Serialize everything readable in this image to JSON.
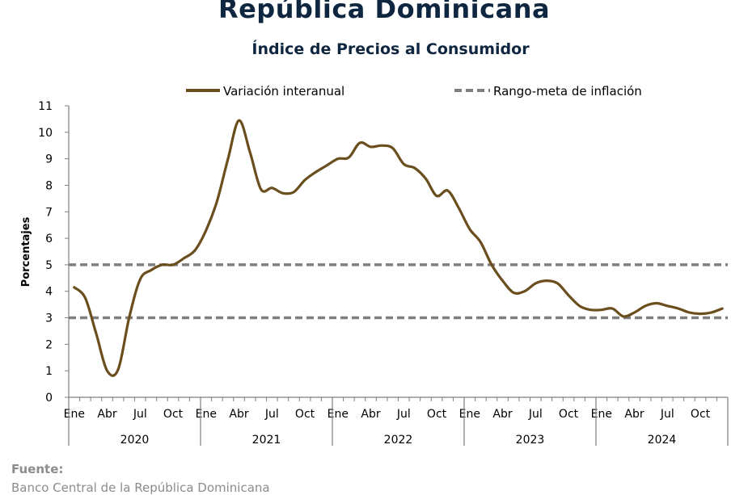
{
  "chart_data": {
    "type": "line",
    "title": "República Dominicana",
    "subtitle": "Índice de Precios al Consumidor",
    "ylabel": "Porcentajes",
    "xlabel": "",
    "ylim": [
      0,
      11
    ],
    "yticks": [
      0,
      1,
      2,
      3,
      4,
      5,
      6,
      7,
      8,
      9,
      10,
      11
    ],
    "grid": false,
    "legend_position": "top",
    "month_tick_labels": [
      "Ene",
      "Abr",
      "Jul",
      "Oct"
    ],
    "years": [
      "2020",
      "2021",
      "2022",
      "2023",
      "2024"
    ],
    "x_start": "2020-01",
    "series": [
      {
        "name": "Variación interanual",
        "color": "#6b4e1e",
        "style": "solid",
        "values": [
          4.15,
          3.75,
          2.4,
          1.0,
          1.05,
          3.0,
          4.45,
          4.8,
          5.0,
          5.0,
          5.25,
          5.55,
          6.3,
          7.4,
          9.0,
          10.45,
          9.25,
          7.85,
          7.9,
          7.7,
          7.75,
          8.2,
          8.5,
          8.75,
          9.0,
          9.05,
          9.6,
          9.45,
          9.5,
          9.4,
          8.8,
          8.65,
          8.25,
          7.6,
          7.8,
          7.15,
          6.35,
          5.85,
          5.0,
          4.4,
          3.95,
          4.0,
          4.3,
          4.4,
          4.3,
          3.85,
          3.45,
          3.3,
          3.3,
          3.35,
          3.05,
          3.2,
          3.45,
          3.55,
          3.45,
          3.35,
          3.2,
          3.15,
          3.2,
          3.35
        ]
      },
      {
        "name": "Rango-meta de inflación",
        "color": "#7f7f7f",
        "style": "dashed",
        "upper": 5,
        "lower": 3
      }
    ]
  },
  "footer": {
    "label": "Fuente:",
    "source": "Banco Central de la República Dominicana"
  }
}
